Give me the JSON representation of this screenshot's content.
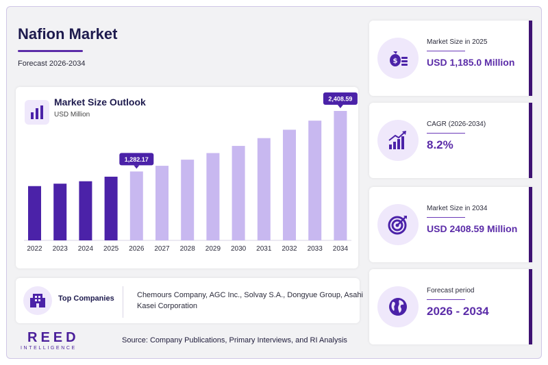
{
  "header": {
    "title": "Nafion Market",
    "subtitle": "Forecast 2026-2034"
  },
  "chart_data": {
    "type": "bar",
    "title": "Market Size Outlook",
    "unit": "USD Million",
    "categories": [
      "2022",
      "2023",
      "2024",
      "2025",
      "2026",
      "2027",
      "2028",
      "2029",
      "2030",
      "2031",
      "2032",
      "2033",
      "2034"
    ],
    "values": [
      1010,
      1055,
      1100,
      1185,
      1282.17,
      1388,
      1502,
      1625,
      1758,
      1903,
      2059,
      2228,
      2408.59
    ],
    "historical_count": 4,
    "data_labels": [
      {
        "index": 4,
        "text": "1,282.17"
      },
      {
        "index": 12,
        "text": "2,408.59"
      }
    ],
    "colors": {
      "historical": "#4b22a8",
      "forecast": "#c8b8f0",
      "label_bg": "#4b22a8"
    },
    "ylim": [
      0,
      2600
    ],
    "grid": false
  },
  "companies": {
    "label": "Top Companies",
    "text": "Chemours Company, AGC Inc., Solvay S.A., Dongyue Group, Asahi Kasei Corporation"
  },
  "footer": {
    "source": "Source: Company Publications, Primary Interviews, and RI Analysis",
    "logo_main": "REED",
    "logo_sub": "INTELLIGENCE"
  },
  "kpis": [
    {
      "label": "Market Size in 2025",
      "value": "USD 1,185.0 Million",
      "icon": "money-bag-icon"
    },
    {
      "label": "CAGR (2026-2034)",
      "value": "8.2%",
      "icon": "growth-chart-icon"
    },
    {
      "label": "Market Size in 2034",
      "value": "USD 2408.59 Million",
      "icon": "target-icon"
    },
    {
      "label": "Forecast period",
      "value": "2026 - 2034",
      "icon": "globe-icon"
    }
  ]
}
